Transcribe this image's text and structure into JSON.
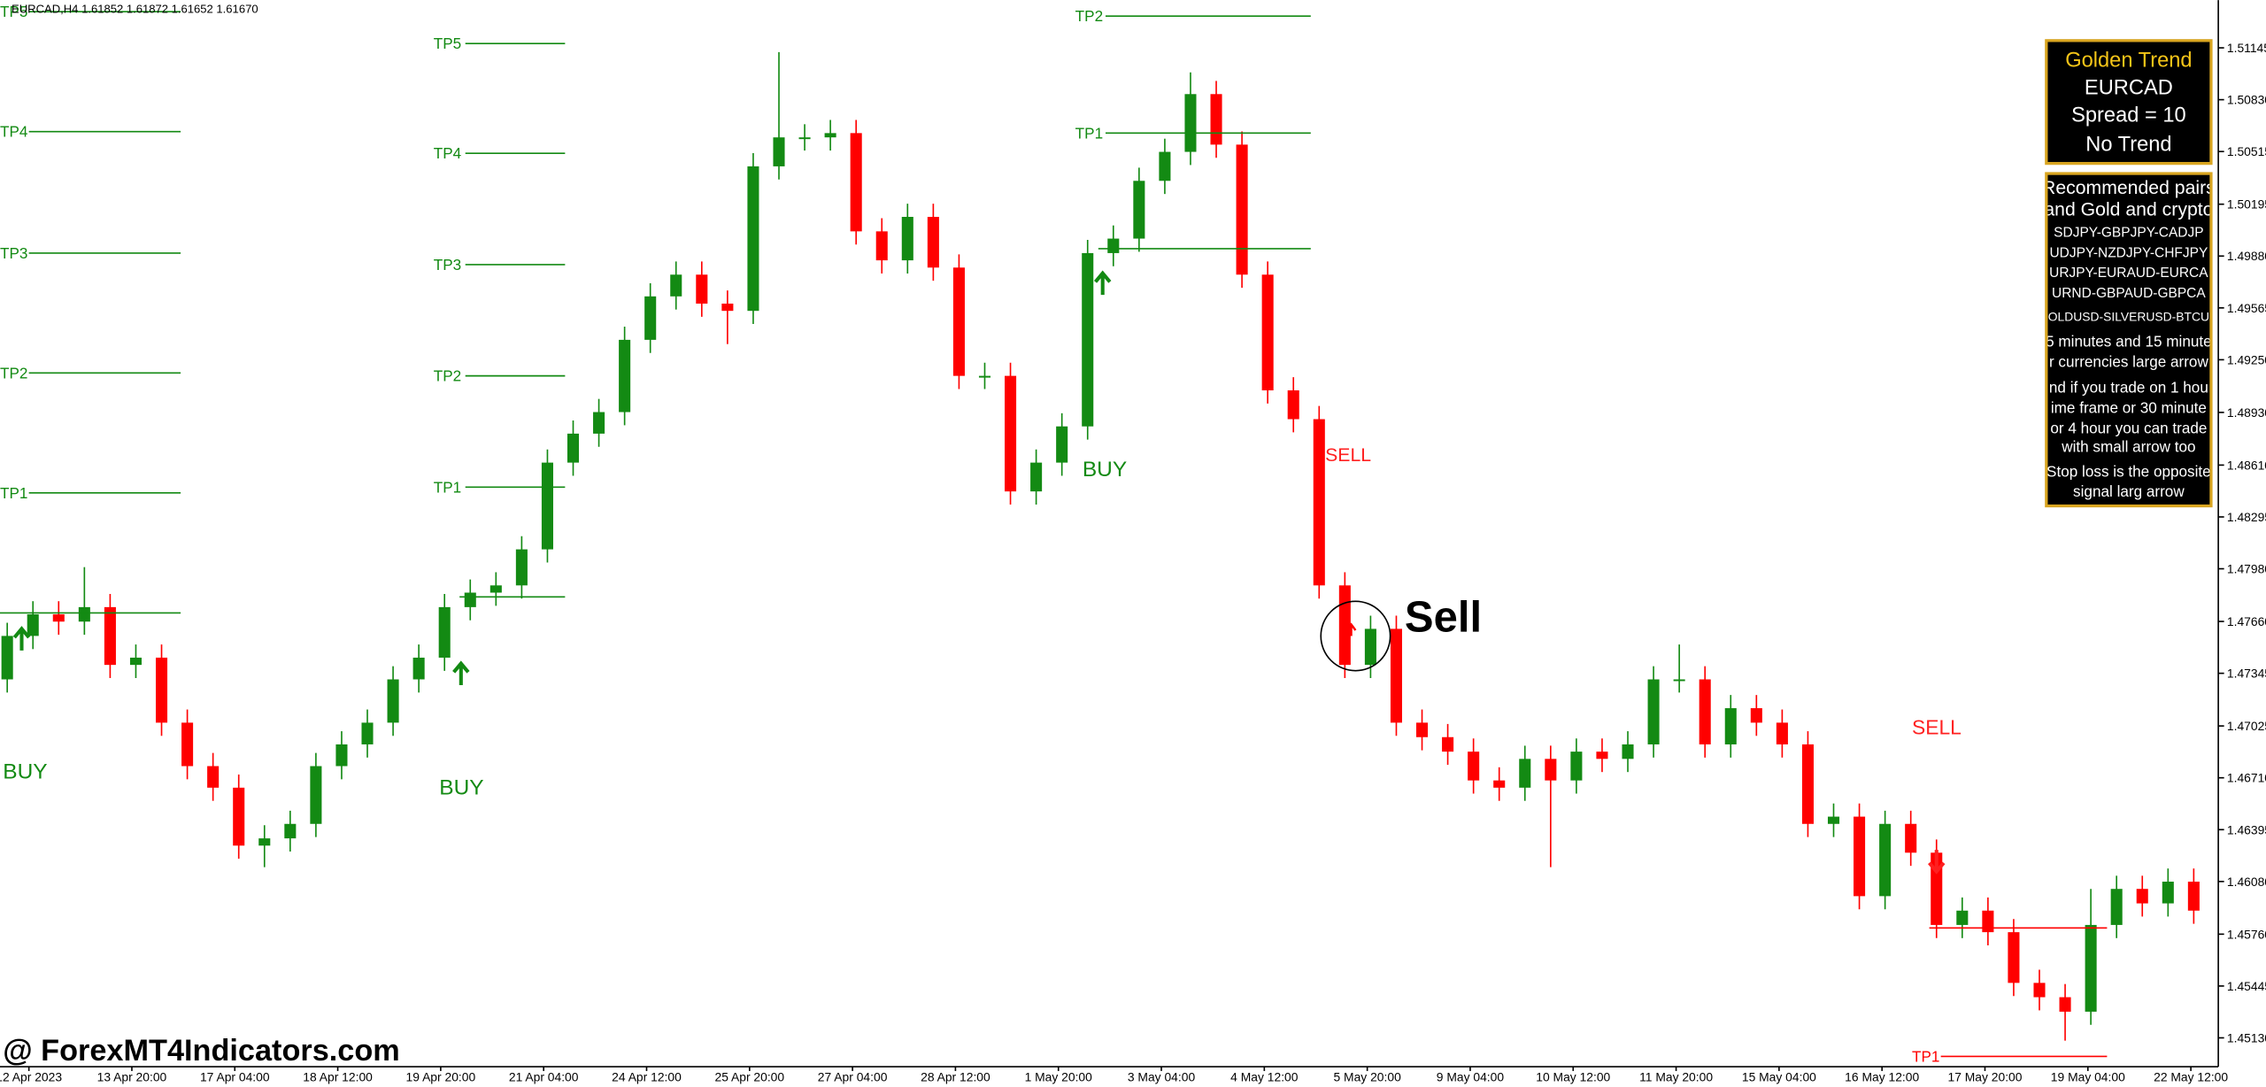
{
  "header": "EURCAD,H4  1.61852 1.61872 1.61652 1.61670",
  "watermark": "@ ForexMT4Indicators.com",
  "panel": {
    "title": "Golden Trend",
    "pair": "EURCAD",
    "spread": "Spread = 10",
    "trend": "No Trend"
  },
  "info": [
    "Recommended pairs",
    "and Gold and crypto",
    "SDJPY-GBPJPY-CADJP",
    "UDJPY-NZDJPY-CHFJPY",
    "URJPY-EURAUD-EURCA",
    "URND-GBPAUD-GBPCA",
    "OLDUSD-SILVERUSD-BTCU",
    "5 minutes and 15 minute",
    "r currencies large arrow",
    "nd if you trade on 1 hou",
    "ime frame or 30 minute",
    "or 4 hour you can trade",
    "with small arrow too",
    "Stop loss is the opposite",
    "signal larg arrow"
  ],
  "chart_data": {
    "type": "candlestick",
    "up_color": "#138a13",
    "down_color": "#ff0000",
    "ylim": [
      1.44955,
      1.51435
    ],
    "yticks": [
      1.51145,
      {
        "value": 1.5083,
        "label": "1.50830"
      },
      1.50515,
      1.50195,
      {
        "value": 1.4988,
        "label": "1.49880"
      },
      1.49565,
      {
        "value": 1.4925,
        "label": "1.49250"
      },
      {
        "value": 1.4893,
        "label": "1.48930"
      },
      {
        "value": 1.4861,
        "label": "1.48610"
      },
      1.48295,
      {
        "value": 1.4798,
        "label": "1.47980"
      },
      {
        "value": 1.4766,
        "label": "1.47660"
      },
      1.47345,
      1.47025,
      {
        "value": 1.4671,
        "label": "1.46710"
      },
      1.46395,
      {
        "value": 1.4608,
        "label": "1.46080"
      },
      {
        "value": 1.4576,
        "label": "1.45760"
      },
      1.45445,
      {
        "value": 1.4513,
        "label": "1.45130"
      }
    ],
    "xtick_labels": [
      "12 Apr 2023",
      "13 Apr 20:00",
      "17 Apr 04:00",
      "18 Apr 12:00",
      "19 Apr 20:00",
      "21 Apr 04:00",
      "24 Apr 12:00",
      "25 Apr 20:00",
      "27 Apr 04:00",
      "28 Apr 12:00",
      "1 May 20:00",
      "3 May 04:00",
      "4 May 12:00",
      "5 May 20:00",
      "9 May 04:00",
      "10 May 12:00",
      "11 May 20:00",
      "15 May 04:00",
      "16 May 12:00",
      "17 May 20:00",
      "19 May 04:00",
      "22 May 12:00"
    ],
    "open": [
      1.47308,
      1.47572,
      1.47703,
      1.47659,
      1.47747,
      1.47396,
      1.4744,
      1.47045,
      1.46781,
      1.4665,
      1.46298,
      1.46342,
      1.4643,
      1.46781,
      1.46913,
      1.47045,
      1.47308,
      1.4744,
      1.47747,
      1.47835,
      1.47879,
      1.48098,
      1.48625,
      1.48801,
      1.48932,
      1.49371,
      1.49635,
      1.49767,
      1.49591,
      1.49547,
      1.50425,
      1.50601,
      1.50601,
      1.50627,
      1.5003,
      1.49854,
      1.50118,
      1.4981,
      1.49152,
      1.49152,
      1.4845,
      1.48625,
      1.48845,
      1.49898,
      1.49986,
      1.50337,
      1.50513,
      1.50864,
      1.50557,
      1.49767,
      1.49064,
      1.48889,
      1.47879,
      1.47396,
      1.47615,
      1.47045,
      1.46957,
      1.46869,
      1.46694,
      1.4665,
      1.46825,
      1.46694,
      1.46869,
      1.46825,
      1.46913,
      1.47308,
      1.47308,
      1.46913,
      1.47133,
      1.47045,
      1.46913,
      1.4643,
      1.46474,
      1.45991,
      1.4643,
      1.46255,
      1.45816,
      1.45903,
      1.45772,
      1.45464,
      1.45377,
      1.45289,
      1.45816,
      1.46035,
      1.45947,
      1.46079
    ],
    "high": [
      1.47652,
      1.47783,
      1.47783,
      1.4799,
      1.47827,
      1.4752,
      1.4752,
      1.47125,
      1.46861,
      1.4673,
      1.46422,
      1.4651,
      1.46861,
      1.46993,
      1.47125,
      1.47388,
      1.4752,
      1.47827,
      1.47915,
      1.47959,
      1.48178,
      1.48705,
      1.48881,
      1.49012,
      1.49451,
      1.49715,
      1.49847,
      1.49847,
      1.49671,
      1.50505,
      1.51119,
      1.50681,
      1.50707,
      1.50707,
      1.5011,
      1.50198,
      1.50198,
      1.4989,
      1.49232,
      1.49232,
      1.48705,
      1.48925,
      1.49978,
      1.50066,
      1.50417,
      1.50593,
      1.50996,
      1.50944,
      1.50637,
      1.49847,
      1.49144,
      1.48969,
      1.47959,
      1.47695,
      1.47695,
      1.47125,
      1.47037,
      1.46949,
      1.46774,
      1.46905,
      1.46905,
      1.46949,
      1.46949,
      1.46993,
      1.47388,
      1.4752,
      1.47388,
      1.47213,
      1.47213,
      1.47125,
      1.46993,
      1.46554,
      1.46554,
      1.4651,
      1.4651,
      1.46335,
      1.45983,
      1.45983,
      1.45852,
      1.45544,
      1.45457,
      1.46035,
      1.46115,
      1.46115,
      1.46159,
      1.46159
    ],
    "low": [
      1.47228,
      1.47492,
      1.47579,
      1.47579,
      1.47316,
      1.47316,
      1.46965,
      1.46701,
      1.4657,
      1.46218,
      1.46167,
      1.46262,
      1.4635,
      1.46701,
      1.46833,
      1.46965,
      1.47228,
      1.4736,
      1.47667,
      1.47755,
      1.47799,
      1.48018,
      1.48545,
      1.48721,
      1.48852,
      1.49291,
      1.49555,
      1.49511,
      1.49345,
      1.49467,
      1.50345,
      1.50521,
      1.50521,
      1.4995,
      1.49774,
      1.49774,
      1.4973,
      1.49072,
      1.49072,
      1.4837,
      1.4837,
      1.48545,
      1.48765,
      1.49818,
      1.49906,
      1.50257,
      1.50433,
      1.50477,
      1.49687,
      1.48984,
      1.48809,
      1.47799,
      1.47316,
      1.47316,
      1.46965,
      1.46877,
      1.46789,
      1.46614,
      1.4657,
      1.4657,
      1.46167,
      1.46614,
      1.46745,
      1.46745,
      1.46833,
      1.47228,
      1.46833,
      1.46833,
      1.46965,
      1.46833,
      1.4635,
      1.4635,
      1.45911,
      1.45911,
      1.46175,
      1.45736,
      1.45736,
      1.45692,
      1.45384,
      1.45297,
      1.45113,
      1.45209,
      1.45736,
      1.45867,
      1.45867,
      1.45823
    ],
    "close": [
      1.47572,
      1.47703,
      1.47659,
      1.47747,
      1.47396,
      1.4744,
      1.47045,
      1.46781,
      1.4665,
      1.46298,
      1.46342,
      1.4643,
      1.46781,
      1.46913,
      1.47045,
      1.47308,
      1.4744,
      1.47747,
      1.47835,
      1.47879,
      1.48098,
      1.48625,
      1.48801,
      1.48932,
      1.49371,
      1.49635,
      1.49767,
      1.49591,
      1.49547,
      1.50425,
      1.50601,
      1.50601,
      1.50627,
      1.5003,
      1.49854,
      1.50118,
      1.4981,
      1.49152,
      1.49152,
      1.4845,
      1.48625,
      1.48845,
      1.49898,
      1.49986,
      1.50337,
      1.50513,
      1.50864,
      1.50557,
      1.49767,
      1.49064,
      1.48889,
      1.47879,
      1.47396,
      1.47615,
      1.47045,
      1.46957,
      1.46869,
      1.46694,
      1.4665,
      1.46825,
      1.46694,
      1.46869,
      1.46825,
      1.46913,
      1.47308,
      1.47308,
      1.46913,
      1.47133,
      1.47045,
      1.46913,
      1.4643,
      1.46474,
      1.45991,
      1.4643,
      1.46255,
      1.45816,
      1.45903,
      1.45772,
      1.45464,
      1.45377,
      1.45289,
      1.45816,
      1.46035,
      1.45947,
      1.46079,
      1.45903
    ],
    "levels": [
      {
        "color": "#138a13",
        "entry": 1.47712,
        "lines": [
          {
            "label": "TP1",
            "value": 1.48441
          },
          {
            "label": "TP2",
            "value": 1.4917
          },
          {
            "label": "TP3",
            "value": 1.49898
          },
          {
            "label": "TP4",
            "value": 1.50636
          },
          {
            "label": "TP5",
            "value": 1.51365
          }
        ]
      },
      {
        "color": "#138a13",
        "entry": 1.47809,
        "lines": [
          {
            "label": "TP1",
            "value": 1.48476
          },
          {
            "label": "TP2",
            "value": 1.49152
          },
          {
            "label": "TP3",
            "value": 1.49828
          },
          {
            "label": "TP4",
            "value": 1.50504
          },
          {
            "label": "TP5",
            "value": 1.51171
          }
        ]
      },
      {
        "color": "#138a13",
        "entry": 1.49925,
        "lines": [
          {
            "label": "TP1",
            "value": 1.50627
          },
          {
            "label": "TP2",
            "value": 1.51338
          }
        ]
      },
      {
        "color": "#ff0000",
        "entry": 1.45798,
        "lines": [
          {
            "label": "TP1",
            "value": 1.45017
          }
        ]
      }
    ],
    "signals": [
      {
        "label": "BUY",
        "color": "#138a13"
      },
      {
        "label": "BUY",
        "color": "#138a13"
      },
      {
        "label": "BUY",
        "color": "#138a13"
      },
      {
        "label": "SELL",
        "color": "#ff2020"
      },
      {
        "label": "SELL",
        "color": "#ff2020"
      },
      {
        "label": "Sell",
        "color": "#000000"
      }
    ]
  }
}
